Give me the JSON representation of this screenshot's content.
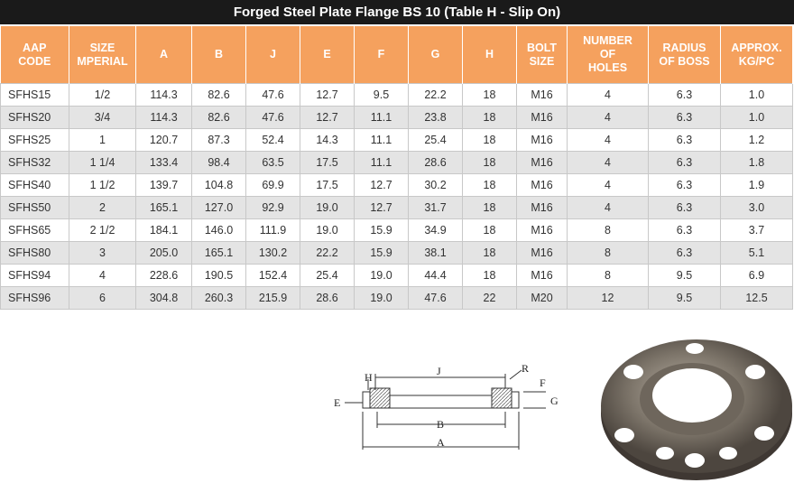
{
  "header": {
    "title": "Forged Steel Plate Flange  BS 10  (Table H - Slip On)"
  },
  "table": {
    "headers": [
      [
        "AAP",
        "CODE"
      ],
      [
        "SIZE",
        "MPERIAL"
      ],
      [
        "A"
      ],
      [
        "B"
      ],
      [
        "J"
      ],
      [
        "E"
      ],
      [
        "F"
      ],
      [
        "G"
      ],
      [
        "H"
      ],
      [
        "BOLT",
        "SIZE"
      ],
      [
        "NUMBER",
        "OF",
        "HOLES"
      ],
      [
        "RADIUS",
        "OF BOSS"
      ],
      [
        "APPROX.",
        "KG/PC"
      ]
    ],
    "rows": [
      [
        "SFHS15",
        "1/2",
        "114.3",
        "82.6",
        "47.6",
        "12.7",
        "9.5",
        "22.2",
        "18",
        "M16",
        "4",
        "6.3",
        "1.0"
      ],
      [
        "SFHS20",
        "3/4",
        "114.3",
        "82.6",
        "47.6",
        "12.7",
        "11.1",
        "23.8",
        "18",
        "M16",
        "4",
        "6.3",
        "1.0"
      ],
      [
        "SFHS25",
        "1",
        "120.7",
        "87.3",
        "52.4",
        "14.3",
        "11.1",
        "25.4",
        "18",
        "M16",
        "4",
        "6.3",
        "1.2"
      ],
      [
        "SFHS32",
        "1 1/4",
        "133.4",
        "98.4",
        "63.5",
        "17.5",
        "11.1",
        "28.6",
        "18",
        "M16",
        "4",
        "6.3",
        "1.8"
      ],
      [
        "SFHS40",
        "1 1/2",
        "139.7",
        "104.8",
        "69.9",
        "17.5",
        "12.7",
        "30.2",
        "18",
        "M16",
        "4",
        "6.3",
        "1.9"
      ],
      [
        "SFHS50",
        "2",
        "165.1",
        "127.0",
        "92.9",
        "19.0",
        "12.7",
        "31.7",
        "18",
        "M16",
        "4",
        "6.3",
        "3.0"
      ],
      [
        "SFHS65",
        "2 1/2",
        "184.1",
        "146.0",
        "111.9",
        "19.0",
        "15.9",
        "34.9",
        "18",
        "M16",
        "8",
        "6.3",
        "3.7"
      ],
      [
        "SFHS80",
        "3",
        "205.0",
        "165.1",
        "130.2",
        "22.2",
        "15.9",
        "38.1",
        "18",
        "M16",
        "8",
        "6.3",
        "5.1"
      ],
      [
        "SFHS94",
        "4",
        "228.6",
        "190.5",
        "152.4",
        "25.4",
        "19.0",
        "44.4",
        "18",
        "M16",
        "8",
        "9.5",
        "6.9"
      ],
      [
        "SFHS96",
        "6",
        "304.8",
        "260.3",
        "215.9",
        "28.6",
        "19.0",
        "47.6",
        "22",
        "M20",
        "12",
        "9.5",
        "12.5"
      ]
    ]
  },
  "diagram": {
    "labels": {
      "H": "H",
      "J": "J",
      "R": "R",
      "F": "F",
      "E": "E",
      "G": "G",
      "B": "B",
      "A": "A"
    }
  }
}
